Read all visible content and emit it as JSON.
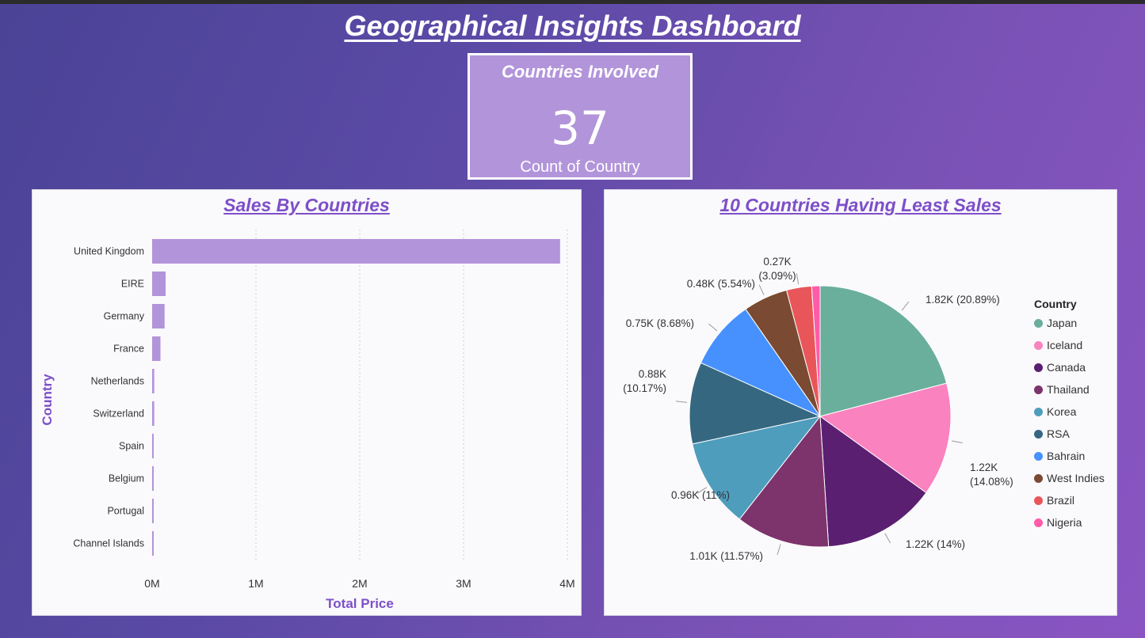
{
  "dashboard": {
    "title": "Geographical Insights Dashboard"
  },
  "kpi": {
    "title": "Countries Involved",
    "value": "37",
    "label": "Count of Country"
  },
  "chart_data": [
    {
      "type": "bar",
      "orientation": "horizontal",
      "title": "Sales By Countries",
      "xlabel": "Total Price",
      "ylabel": "Country",
      "categories": [
        "United Kingdom",
        "EIRE",
        "Germany",
        "France",
        "Netherlands",
        "Switzerland",
        "Spain",
        "Belgium",
        "Portugal",
        "Channel Islands"
      ],
      "values": [
        3930000,
        130000,
        120000,
        80000,
        20000,
        20000,
        15000,
        12000,
        10000,
        10000
      ],
      "xlim": [
        0,
        4000000
      ],
      "xticks": [
        "0M",
        "1M",
        "2M",
        "3M",
        "4M"
      ],
      "grid": "vertical dotted",
      "bar_color": "#b294da"
    },
    {
      "type": "pie",
      "title": "10 Countries Having Least Sales",
      "legend_title": "Country",
      "legend_position": "right",
      "slices": [
        {
          "label": "Japan",
          "value": 1820,
          "percent": 20.89,
          "data_label": "1.82K (20.89%)",
          "color": "#6aae9c"
        },
        {
          "label": "Iceland",
          "value": 1220,
          "percent": 14.08,
          "data_label": "1.22K (14.08%)",
          "color": "#fa82bf"
        },
        {
          "label": "Canada",
          "value": 1220,
          "percent": 14.0,
          "data_label": "1.22K (14%)",
          "color": "#5b1f72"
        },
        {
          "label": "Thailand",
          "value": 1010,
          "percent": 11.57,
          "data_label": "1.01K (11.57%)",
          "color": "#7d336b"
        },
        {
          "label": "Korea",
          "value": 960,
          "percent": 11.0,
          "data_label": "0.96K (11%)",
          "color": "#4f9dbd"
        },
        {
          "label": "RSA",
          "value": 880,
          "percent": 10.17,
          "data_label": "0.88K (10.17%)",
          "color": "#356880"
        },
        {
          "label": "Bahrain",
          "value": 750,
          "percent": 8.68,
          "data_label": "0.75K (8.68%)",
          "color": "#4791ff"
        },
        {
          "label": "West Indies",
          "value": 480,
          "percent": 5.54,
          "data_label": "0.48K (5.54%)",
          "color": "#7a4a32"
        },
        {
          "label": "Brazil",
          "value": 270,
          "percent": 3.09,
          "data_label": "0.27K (3.09%)",
          "color": "#e8565a"
        },
        {
          "label": "Nigeria",
          "value": 90,
          "percent": 0.99,
          "data_label": "",
          "color": "#ff5ba8"
        }
      ]
    }
  ]
}
